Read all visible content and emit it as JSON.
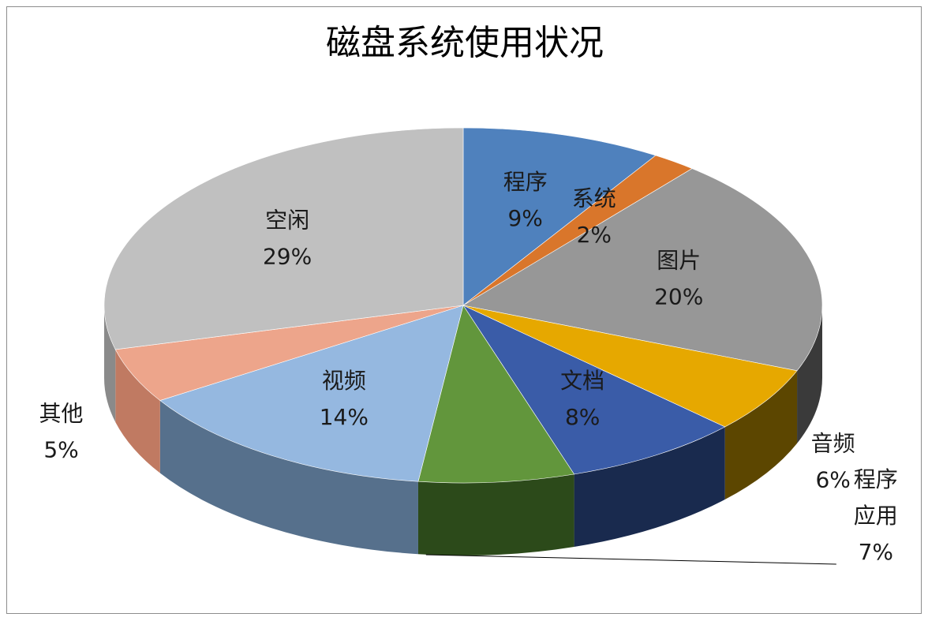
{
  "chart_data": {
    "type": "pie",
    "style": "3d",
    "title": "磁盘系统使用状况",
    "slices": [
      {
        "label": "程序",
        "value": 9,
        "display": "9%",
        "color": "#4f81bd",
        "side": "#2e5484"
      },
      {
        "label": "系统",
        "value": 2,
        "display": "2%",
        "color": "#d9762b",
        "side": "#8a4613"
      },
      {
        "label": "图片",
        "value": 20,
        "display": "20%",
        "color": "#979797",
        "side": "#3a3a3a"
      },
      {
        "label": "音频",
        "value": 6,
        "display": "6%",
        "color": "#e6a800",
        "side": "#5c4600"
      },
      {
        "label": "文档",
        "value": 8,
        "display": "8%",
        "color": "#3a5ca8",
        "side": "#192a4e"
      },
      {
        "label": "程序应用",
        "value": 7,
        "display": "7%",
        "color": "#62963c",
        "side": "#2c4a1a"
      },
      {
        "label": "视频",
        "value": 14,
        "display": "14%",
        "color": "#95b8e0",
        "side": "#56708c"
      },
      {
        "label": "其他",
        "value": 5,
        "display": "5%",
        "color": "#eda58b",
        "side": "#c07a62"
      },
      {
        "label": "空闲",
        "value": 29,
        "display": "29%",
        "color": "#c0c0c0",
        "side": "#8a8a8a"
      }
    ],
    "legend": "none",
    "data_labels": "category and percentage"
  }
}
